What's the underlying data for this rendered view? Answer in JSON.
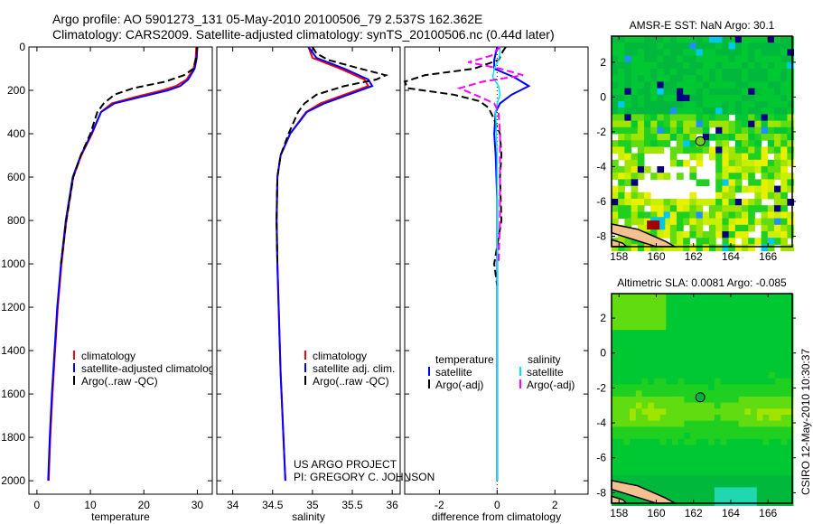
{
  "title": {
    "line1": "Argo profile: AO 5901273_131 05-May-2010 20100506_79 2.537S 162.362E",
    "line2": "Climatology: CARS2009. Satellite-adjusted climatology: synTS_20100506.nc (0.44d later)"
  },
  "credit": {
    "line1": "US ARGO PROJECT",
    "line2": "PI: GREGORY C. JOHNSON"
  },
  "stamp": "CSIRO 12-May-2010 10:30:37",
  "colors": {
    "climatology": "#ff0000",
    "satellite": "#0000ff",
    "argo": "#000000",
    "sal_satellite": "#00e5ee",
    "sal_argo": "#ff00ff"
  },
  "chart_data": [
    {
      "type": "line",
      "name": "temperature",
      "xlabel": "temperature",
      "xlim": [
        -1.5,
        32.8
      ],
      "ylim": [
        2062,
        0
      ],
      "xticks": [
        0,
        10,
        20,
        30
      ],
      "yticks": [
        0,
        200,
        400,
        600,
        800,
        1000,
        1200,
        1400,
        1600,
        1800,
        2000
      ],
      "series": [
        {
          "name": "climatology",
          "style": "solid",
          "color": "#ff0000",
          "depth": [
            0,
            50,
            100,
            150,
            180,
            200,
            230,
            260,
            300,
            400,
            500,
            600,
            800,
            1000,
            1200,
            1400,
            1600,
            1800,
            2000
          ],
          "values": [
            29.8,
            29.7,
            29.3,
            28,
            26,
            23.5,
            18.5,
            14,
            12,
            10.3,
            8.3,
            6.8,
            5.5,
            4.6,
            3.9,
            3.4,
            2.9,
            2.5,
            2.2
          ]
        },
        {
          "name": "satellite-adjusted climatology",
          "style": "solid",
          "color": "#0000ff",
          "depth": [
            0,
            50,
            100,
            150,
            180,
            200,
            230,
            260,
            300,
            400,
            500,
            600,
            800,
            1000,
            1200,
            1400,
            1600,
            1800,
            2000
          ],
          "values": [
            30,
            29.9,
            29.5,
            28.3,
            26.8,
            24.5,
            19.5,
            14.5,
            12,
            10.2,
            8.2,
            6.7,
            5.4,
            4.5,
            3.8,
            3.3,
            2.8,
            2.4,
            2.1
          ]
        },
        {
          "name": "Argo(..raw -QC)",
          "style": "dashed",
          "color": "#000000",
          "depth": [
            0,
            50,
            100,
            130,
            160,
            190,
            220,
            260,
            300,
            400,
            500,
            600,
            800,
            1000
          ],
          "values": [
            30,
            29.8,
            29.3,
            27.5,
            24,
            18,
            14.5,
            12.5,
            11.3,
            10,
            8.2,
            6.8,
            5.5,
            4.5
          ]
        }
      ],
      "legend": [
        "climatology",
        "satellite-adjusted climatology",
        "Argo(..raw -QC)"
      ]
    },
    {
      "type": "line",
      "name": "salinity",
      "xlabel": "salinity",
      "xlim": [
        33.8,
        36.1
      ],
      "ylim": [
        2062,
        0
      ],
      "xticks": [
        34,
        34.5,
        35,
        35.5,
        36
      ],
      "series": [
        {
          "name": "climatology",
          "style": "solid",
          "color": "#ff0000",
          "depth": [
            0,
            50,
            100,
            150,
            180,
            220,
            260,
            300,
            400,
            500,
            600,
            800,
            1000,
            1500,
            2000
          ],
          "values": [
            34.95,
            35.0,
            35.35,
            35.65,
            35.7,
            35.4,
            35.1,
            34.92,
            34.72,
            34.6,
            34.56,
            34.55,
            34.56,
            34.6,
            34.66
          ]
        },
        {
          "name": "satellite adj. clim.",
          "style": "solid",
          "color": "#0000ff",
          "depth": [
            0,
            50,
            100,
            150,
            180,
            220,
            260,
            300,
            400,
            500,
            600,
            800,
            1000,
            1500,
            2000
          ],
          "values": [
            34.95,
            35.05,
            35.4,
            35.7,
            35.75,
            35.45,
            35.15,
            34.93,
            34.72,
            34.6,
            34.56,
            34.55,
            34.56,
            34.6,
            34.66
          ]
        },
        {
          "name": "Argo(..raw -QC)",
          "style": "dashed",
          "color": "#000000",
          "depth": [
            0,
            30,
            60,
            100,
            130,
            150,
            180,
            220,
            260,
            300,
            400,
            500,
            600,
            800,
            1000
          ],
          "values": [
            35.0,
            35.05,
            35.2,
            35.6,
            35.92,
            35.8,
            35.4,
            35.05,
            34.9,
            34.82,
            34.7,
            34.6,
            34.56,
            34.55,
            34.56
          ]
        }
      ],
      "legend": [
        "climatology",
        "satellite adj. clim.",
        "Argo(..raw -QC)"
      ]
    },
    {
      "type": "line",
      "name": "difference",
      "xlabel": "difference from climatology",
      "xlim": [
        -3.2,
        3.15
      ],
      "ylim": [
        2062,
        0
      ],
      "xticks": [
        -2,
        0,
        2
      ],
      "series": [
        {
          "name": "temperature satellite",
          "style": "solid",
          "color": "#0000ff",
          "depth": [
            0,
            60,
            100,
            140,
            180,
            220,
            260,
            300,
            400,
            500,
            700,
            1000,
            1500,
            2000
          ],
          "values": [
            0,
            -0.1,
            -0.1,
            0.6,
            1.1,
            0.5,
            0.1,
            -0.05,
            -0.1,
            -0.05,
            0,
            0,
            0,
            0
          ]
        },
        {
          "name": "temperature Argo(-adj)",
          "style": "dashed",
          "color": "#000000",
          "depth": [
            0,
            20,
            60,
            100,
            130,
            160,
            190,
            220,
            250,
            280,
            320,
            400,
            500,
            600,
            800,
            1000,
            1100
          ],
          "values": [
            0.3,
            0.2,
            0.05,
            -0.8,
            -2.5,
            -3.2,
            -3.1,
            -1.5,
            -0.6,
            -0.3,
            -0.15,
            0.1,
            0.15,
            0.1,
            0.15,
            -0.1,
            0
          ]
        },
        {
          "name": "salinity satellite",
          "style": "solid",
          "color": "#00e5ee",
          "depth": [
            0,
            30,
            60,
            100,
            140,
            180,
            220,
            260,
            300,
            500,
            1000,
            2000
          ],
          "values": [
            0.1,
            0.1,
            0.05,
            -0.1,
            -0.15,
            0.05,
            0.1,
            0,
            -0.05,
            0,
            0,
            0
          ],
          "width": 1.5
        },
        {
          "name": "salinity Argo(-adj)",
          "style": "dashed",
          "color": "#ff00ff",
          "depth": [
            0,
            40,
            70,
            100,
            130,
            160,
            190,
            230,
            260,
            300,
            400,
            600,
            800,
            1000
          ],
          "values": [
            0.1,
            -0.2,
            -1.0,
            0.1,
            0.9,
            -0.5,
            -1.3,
            -0.6,
            -0.1,
            0.05,
            0.1,
            0.1,
            0.1,
            0.05
          ]
        }
      ],
      "legend_headers": [
        "temperature",
        "salinity"
      ],
      "legend": [
        "satellite",
        "Argo(-adj)",
        "satellite",
        "Argo(-adj)"
      ]
    },
    {
      "type": "heatmap",
      "name": "sst-map",
      "title": "AMSR-E SST: NaN Argo: 30.1",
      "xlim": [
        157.6,
        167.3
      ],
      "ylim": [
        -8.6,
        3.5
      ],
      "xticks": [
        158,
        160,
        162,
        164,
        166
      ],
      "yticks": [
        2,
        0,
        -2,
        -4,
        -6,
        -8
      ],
      "argo_lon": 162.362,
      "argo_lat": -2.537
    },
    {
      "type": "heatmap",
      "name": "sla-map",
      "title": "Altimetric SLA: 0.0081 Argo: -0.085",
      "xlim": [
        157.6,
        167.3
      ],
      "ylim": [
        -8.6,
        3.4
      ],
      "xticks": [
        158,
        160,
        162,
        164,
        166
      ],
      "yticks": [
        2,
        0,
        -2,
        -4,
        -6,
        -8
      ],
      "argo_lon": 162.362,
      "argo_lat": -2.537
    }
  ]
}
